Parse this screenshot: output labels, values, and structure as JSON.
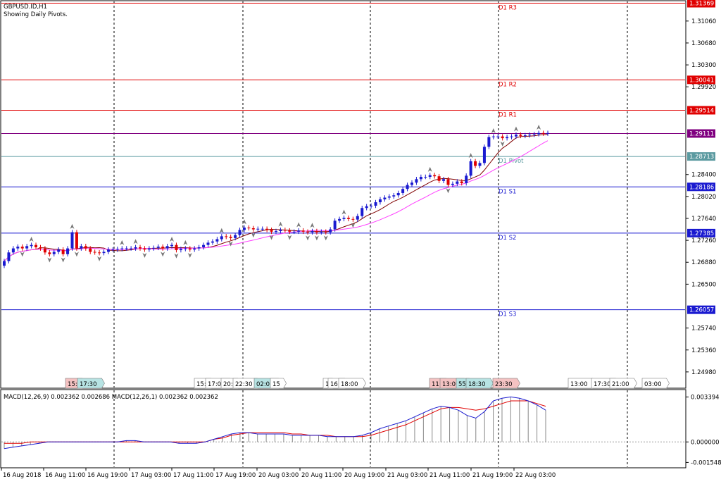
{
  "window": {
    "symbol_label": "GBPUSD.ID,H1",
    "indicator_label": "Showing Daily Pivots."
  },
  "price_axis": {
    "ticks": [
      "1.31060",
      "1.30680",
      "1.30300",
      "1.29920",
      "1.28400",
      "1.28020",
      "1.27640",
      "1.27260",
      "1.26880",
      "1.26500",
      "1.25740",
      "1.25360",
      "1.24980"
    ],
    "tick_values": [
      1.3106,
      1.3068,
      1.303,
      1.2992,
      1.284,
      1.2802,
      1.2764,
      1.2726,
      1.2688,
      1.265,
      1.2574,
      1.2536,
      1.2498
    ],
    "min": 1.2471,
    "max": 1.314
  },
  "pivots": [
    {
      "name": "D1 R3",
      "value_label": "1.31369",
      "value": 1.31369,
      "color": "#e00000"
    },
    {
      "name": "D1 R2",
      "value_label": "1.30041",
      "value": 1.30041,
      "color": "#e00000"
    },
    {
      "name": "D1 R1",
      "value_label": "1.29514",
      "value": 1.29514,
      "color": "#e00000"
    },
    {
      "name": "D1 Pivot",
      "value_label": "1.28713",
      "value": 1.28713,
      "color": "#5b9aa0"
    },
    {
      "name": "D1 S1",
      "value_label": "1.28186",
      "value": 1.28186,
      "color": "#1a1ad0"
    },
    {
      "name": "D1 S2",
      "value_label": "1.27385",
      "value": 1.27385,
      "color": "#1a1ad0"
    },
    {
      "name": "D1 S3",
      "value_label": "1.26057",
      "value": 1.26057,
      "color": "#1a1ad0"
    }
  ],
  "current_price": {
    "label": "1.29111",
    "value": 1.29111,
    "color": "#800080"
  },
  "time_markers": [
    {
      "label": "15:",
      "bg": "#f4c2c2"
    },
    {
      "label": "17:30",
      "bg": "#b7e3e3"
    },
    {
      "label": "15:",
      "bg": "#ffffff"
    },
    {
      "label": "17:00",
      "bg": "#ffffff"
    },
    {
      "label": "20:",
      "bg": "#ffffff"
    },
    {
      "label": "22:30",
      "bg": "#ffffff"
    },
    {
      "label": "02:01",
      "bg": "#b7e3e3"
    },
    {
      "label": "15",
      "bg": "#ffffff"
    },
    {
      "label": "1",
      "bg": "#ffffff"
    },
    {
      "label": "16:",
      "bg": "#ffffff"
    },
    {
      "label": "18:00",
      "bg": "#ffffff"
    },
    {
      "label": "11:",
      "bg": "#f4c2c2"
    },
    {
      "label": "13:00",
      "bg": "#f4c2c2"
    },
    {
      "label": "55",
      "bg": "#b7e3e3"
    },
    {
      "label": "18:30",
      "bg": "#b7e3e3"
    },
    {
      "label": "23:30",
      "bg": "#f4c2c2"
    },
    {
      "label": "13:00",
      "bg": "#ffffff"
    },
    {
      "label": "17:30",
      "bg": "#ffffff"
    },
    {
      "label": "21:00",
      "bg": "#ffffff"
    },
    {
      "label": "03:00",
      "bg": "#ffffff"
    }
  ],
  "time_axis": [
    "16 Aug 2018",
    "16 Aug 11:00",
    "16 Aug 19:00",
    "17 Aug 03:00",
    "17 Aug 11:00",
    "17 Aug 19:00",
    "20 Aug 03:00",
    "20 Aug 11:00",
    "20 Aug 19:00",
    "21 Aug 03:00",
    "21 Aug 11:00",
    "21 Aug 19:00",
    "22 Aug 03:00"
  ],
  "macd": {
    "label": "MACD(12,26,9) 0.002362 0.002686 MACD(12,26,1) 0.002362 0.002362",
    "axis_ticks": [
      "0.003394",
      "0.000000",
      "-0.001548"
    ],
    "axis_values": [
      0.003394,
      0.0,
      -0.001548
    ],
    "min": -0.0019,
    "max": 0.0039
  },
  "chart_data": {
    "type": "candlestick",
    "symbol": "GBPUSD.ID",
    "timeframe": "H1",
    "close_series": [
      1.269,
      1.2705,
      1.2712,
      1.2715,
      1.2712,
      1.2716,
      1.2718,
      1.2714,
      1.2712,
      1.2705,
      1.2702,
      1.2706,
      1.271,
      1.2702,
      1.2712,
      1.274,
      1.2712,
      1.2716,
      1.2712,
      1.2706,
      1.2705,
      1.2704,
      1.2706,
      1.271,
      1.271,
      1.2711,
      1.2712,
      1.2712,
      1.2712,
      1.2714,
      1.2712,
      1.271,
      1.2712,
      1.2713,
      1.2715,
      1.2712,
      1.2716,
      1.2718,
      1.2709,
      1.2711,
      1.2712,
      1.271,
      1.2712,
      1.2714,
      1.2718,
      1.2722,
      1.2724,
      1.2728,
      1.2733,
      1.2732,
      1.273,
      1.2735,
      1.2744,
      1.2748,
      1.2747,
      1.2745,
      1.2746,
      1.2746,
      1.2744,
      1.2741,
      1.2742,
      1.2744,
      1.2743,
      1.2741,
      1.2741,
      1.2743,
      1.2741,
      1.274,
      1.2742,
      1.274,
      1.2741,
      1.274,
      1.2745,
      1.276,
      1.2763,
      1.2765,
      1.2763,
      1.2762,
      1.2768,
      1.2782,
      1.2785,
      1.2786,
      1.2792,
      1.2797,
      1.28,
      1.2802,
      1.2804,
      1.2808,
      1.2815,
      1.2822,
      1.2826,
      1.2832,
      1.2836,
      1.2836,
      1.2839,
      1.2837,
      1.2829,
      1.2832,
      1.2822,
      1.2824,
      1.2828,
      1.2825,
      1.2838,
      1.2863,
      1.2855,
      1.286,
      1.2888,
      1.2905,
      1.2906,
      1.2906,
      1.2903,
      1.2905,
      1.2906,
      1.2909,
      1.2907,
      1.2908,
      1.2909,
      1.291,
      1.2912,
      1.2911,
      1.2912
    ],
    "macd_main": [
      -0.0005,
      -0.0004,
      -0.0003,
      -0.0002,
      -0.0001,
      0.0,
      0.0,
      0.0,
      0.0,
      0.0,
      0.0,
      0.0,
      0.0,
      0.0,
      0.0001,
      0.0001,
      0.0,
      0.0,
      0.0,
      0.0,
      -0.0001,
      -0.0001,
      -0.0001,
      0.0,
      0.0002,
      0.0004,
      0.0006,
      0.0007,
      0.0007,
      0.0006,
      0.0006,
      0.0006,
      0.0006,
      0.0005,
      0.0005,
      0.0005,
      0.0005,
      0.0004,
      0.0004,
      0.0004,
      0.0004,
      0.0005,
      0.0007,
      0.001,
      0.0012,
      0.0014,
      0.0016,
      0.0019,
      0.0022,
      0.0025,
      0.0027,
      0.0026,
      0.0024,
      0.002,
      0.0018,
      0.0023,
      0.0031,
      0.0033,
      0.0034,
      0.0033,
      0.0031,
      0.0028,
      0.0024
    ],
    "macd_signal": [
      -0.0001,
      -0.0001,
      -0.0001,
      0.0,
      0.0,
      0.0,
      0.0,
      0.0,
      0.0,
      0.0,
      0.0,
      0.0,
      0.0,
      0.0,
      0.0,
      0.0,
      0.0,
      0.0,
      0.0,
      0.0,
      0.0,
      0.0,
      0.0,
      0.0,
      0.0002,
      0.0003,
      0.0005,
      0.0006,
      0.0007,
      0.0007,
      0.0007,
      0.0007,
      0.0007,
      0.0006,
      0.0006,
      0.0005,
      0.0005,
      0.0005,
      0.0004,
      0.0004,
      0.0004,
      0.0004,
      0.0005,
      0.0007,
      0.0009,
      0.0011,
      0.0013,
      0.0016,
      0.0019,
      0.0022,
      0.0025,
      0.0026,
      0.0026,
      0.0025,
      0.0024,
      0.0025,
      0.0027,
      0.0029,
      0.0031,
      0.0031,
      0.0031,
      0.0029,
      0.0027
    ]
  }
}
